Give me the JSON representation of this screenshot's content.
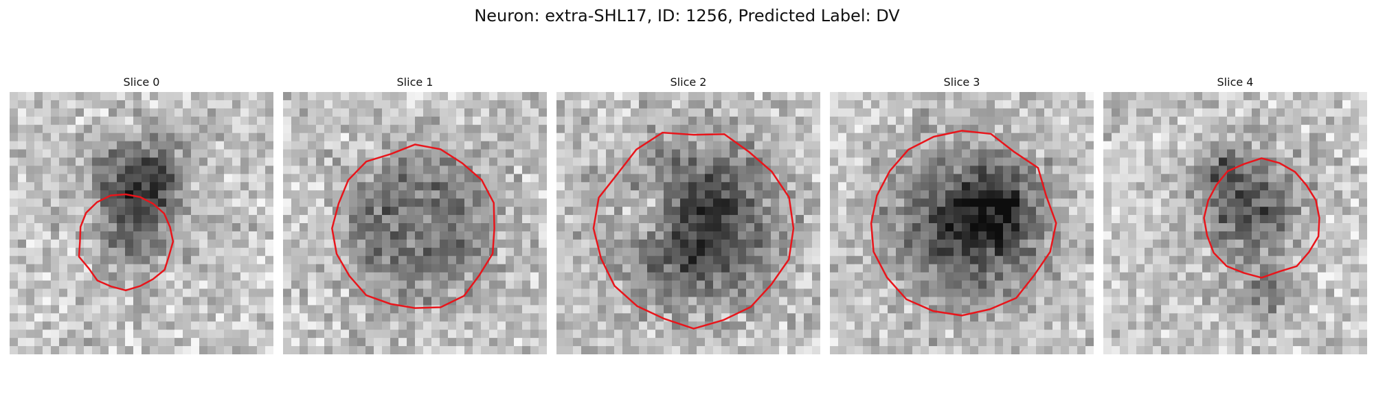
{
  "figure": {
    "title": "Neuron: extra-SHL17, ID: 1256, Predicted Label: DV"
  },
  "panels": [
    {
      "title": "Slice 0",
      "image": "neuron-microscopy-slice",
      "contour_color": "#e8151b",
      "seed": 11
    },
    {
      "title": "Slice 1",
      "image": "neuron-microscopy-slice",
      "contour_color": "#e8151b",
      "seed": 23
    },
    {
      "title": "Slice 2",
      "image": "neuron-microscopy-slice",
      "contour_color": "#e8151b",
      "seed": 37
    },
    {
      "title": "Slice 3",
      "image": "neuron-microscopy-slice",
      "contour_color": "#e8151b",
      "seed": 41
    },
    {
      "title": "Slice 4",
      "image": "neuron-microscopy-slice",
      "contour_color": "#e8151b",
      "seed": 59
    }
  ]
}
